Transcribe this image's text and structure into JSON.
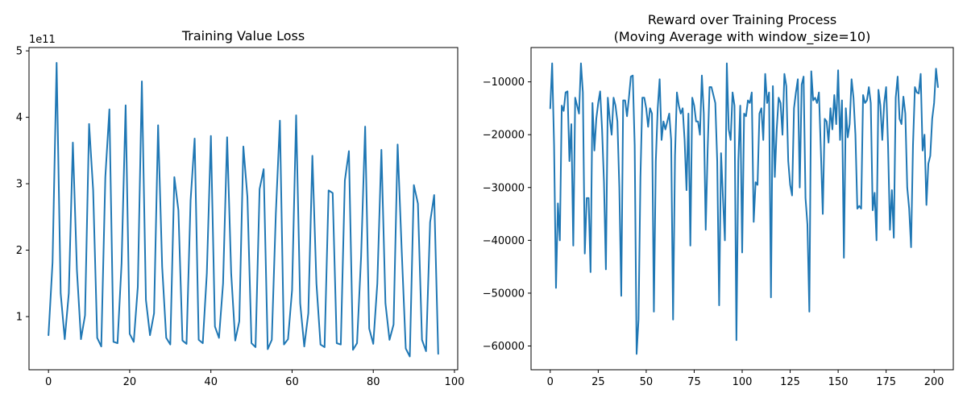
{
  "chart_data": [
    {
      "type": "line",
      "title": "Training Value Loss",
      "xlabel": "",
      "ylabel": "",
      "offset_label": "1e11",
      "xlim": [
        -4.8,
        100.8
      ],
      "ylim": [
        0.2,
        5.05
      ],
      "xticks": [
        0,
        20,
        40,
        60,
        80,
        100
      ],
      "yticks": [
        1,
        2,
        3,
        4,
        5
      ],
      "grid": false,
      "series": [
        {
          "color": "#1f77b4",
          "x_start": 0,
          "values": [
            0.72,
            1.82,
            4.82,
            1.35,
            0.66,
            1.35,
            3.62,
            1.7,
            0.66,
            1.02,
            3.9,
            2.9,
            0.68,
            0.55,
            3.1,
            4.12,
            0.62,
            0.6,
            1.8,
            4.18,
            0.74,
            0.62,
            1.45,
            4.54,
            1.25,
            0.72,
            1.05,
            3.88,
            1.75,
            0.68,
            0.58,
            3.1,
            2.6,
            0.64,
            0.59,
            2.75,
            3.68,
            0.65,
            0.6,
            1.65,
            3.72,
            0.85,
            0.68,
            1.5,
            3.7,
            1.65,
            0.64,
            0.93,
            3.56,
            2.8,
            0.6,
            0.54,
            2.92,
            3.22,
            0.51,
            0.65,
            2.55,
            3.95,
            0.58,
            0.66,
            1.4,
            4.03,
            1.2,
            0.55,
            1.05,
            3.42,
            1.5,
            0.58,
            0.54,
            2.9,
            2.86,
            0.6,
            0.58,
            3.05,
            3.49,
            0.5,
            0.6,
            1.9,
            3.86,
            0.82,
            0.59,
            1.5,
            3.51,
            1.2,
            0.65,
            0.88,
            3.59,
            2.0,
            0.52,
            0.4,
            2.98,
            2.7,
            0.65,
            0.48,
            2.42,
            2.83,
            0.44
          ]
        }
      ]
    },
    {
      "type": "line",
      "title": "Reward over Training Process\n(Moving Average with window_size=10)",
      "title_lines": [
        "Reward over Training Process",
        "(Moving Average with window_size=10)"
      ],
      "xlabel": "",
      "ylabel": "",
      "xlim": [
        -10,
        210
      ],
      "ylim": [
        -64500,
        -3500
      ],
      "xticks": [
        0,
        25,
        50,
        75,
        100,
        125,
        150,
        175,
        200
      ],
      "yticks": [
        -60000,
        -50000,
        -40000,
        -30000,
        -20000,
        -10000
      ],
      "ytick_labels": [
        "−60000",
        "−50000",
        "−40000",
        "−30000",
        "−20000",
        "−10000"
      ],
      "grid": false,
      "series": [
        {
          "color": "#1f77b4",
          "x_start": 0,
          "values": [
            -15000,
            -6500,
            -22000,
            -49000,
            -33000,
            -40000,
            -14500,
            -15500,
            -12000,
            -11800,
            -25000,
            -18000,
            -41000,
            -13000,
            -14500,
            -16000,
            -6500,
            -12000,
            -42500,
            -32000,
            -32000,
            -46000,
            -14000,
            -23000,
            -17000,
            -14000,
            -11800,
            -19000,
            -29000,
            -45500,
            -13000,
            -17000,
            -20000,
            -13000,
            -14500,
            -17500,
            -30000,
            -50500,
            -13500,
            -13500,
            -16500,
            -13000,
            -9000,
            -8800,
            -22000,
            -61500,
            -55000,
            -28000,
            -13000,
            -13000,
            -15000,
            -18500,
            -15000,
            -16000,
            -53500,
            -25000,
            -15000,
            -9500,
            -21000,
            -17500,
            -19000,
            -17500,
            -16000,
            -21000,
            -55000,
            -24000,
            -12000,
            -14500,
            -16000,
            -15000,
            -21000,
            -30500,
            -16000,
            -41000,
            -13000,
            -14500,
            -17500,
            -17500,
            -20000,
            -8800,
            -16000,
            -38000,
            -23000,
            -11000,
            -11000,
            -12500,
            -14000,
            -25000,
            -52300,
            -23500,
            -32000,
            -40000,
            -6500,
            -19000,
            -21000,
            -12000,
            -14500,
            -58900,
            -25000,
            -14500,
            -42300,
            -16000,
            -16500,
            -13500,
            -14000,
            -12000,
            -36500,
            -29000,
            -29500,
            -16000,
            -15000,
            -21000,
            -8500,
            -14000,
            -12000,
            -50800,
            -10800,
            -28000,
            -19000,
            -13000,
            -14000,
            -20000,
            -8500,
            -10800,
            -25000,
            -29500,
            -31500,
            -15000,
            -12000,
            -9500,
            -30000,
            -10500,
            -9000,
            -32000,
            -37000,
            -53500,
            -8000,
            -13500,
            -13000,
            -14000,
            -12000,
            -23000,
            -35000,
            -17000,
            -17500,
            -21500,
            -15000,
            -19000,
            -12500,
            -18000,
            -7800,
            -21000,
            -13500,
            -43300,
            -15000,
            -20500,
            -18000,
            -9500,
            -13000,
            -20000,
            -34000,
            -33500,
            -34000,
            -12500,
            -14000,
            -13500,
            -11000,
            -14000,
            -34300,
            -31000,
            -40000,
            -11500,
            -14500,
            -21000,
            -14000,
            -11000,
            -22000,
            -38000,
            -30500,
            -39500,
            -13000,
            -9000,
            -17000,
            -18000,
            -12800,
            -16000,
            -30000,
            -34000,
            -41300,
            -22000,
            -11000,
            -12000,
            -12200,
            -8500,
            -23000,
            -20000,
            -33300,
            -25500,
            -24000,
            -17000,
            -14000,
            -7500,
            -11000
          ]
        }
      ]
    }
  ]
}
